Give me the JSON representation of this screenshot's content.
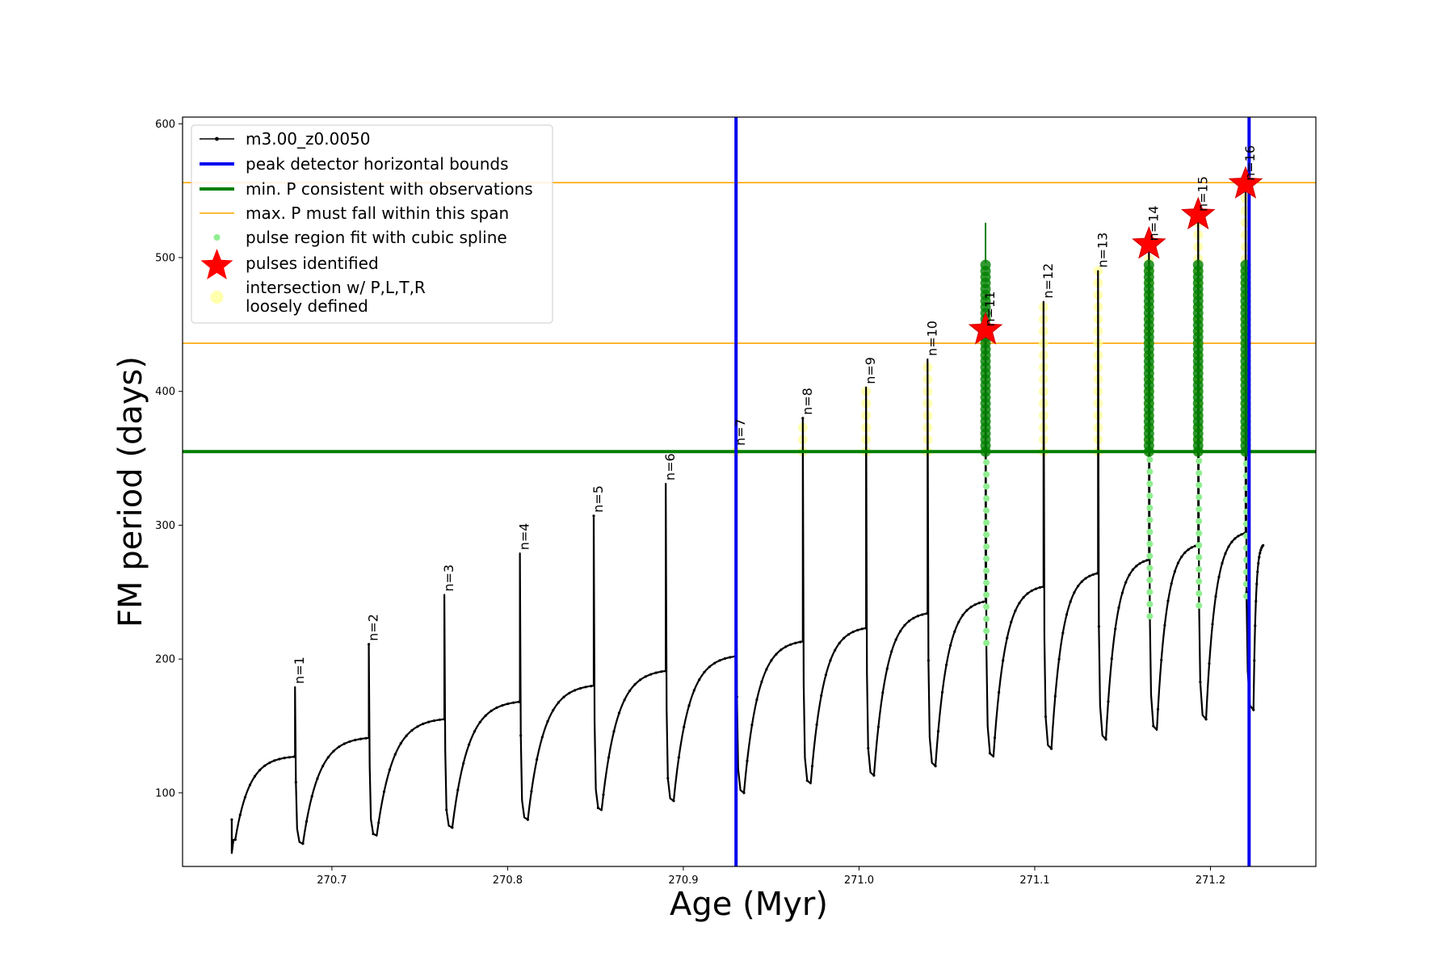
{
  "chart_data": {
    "type": "line",
    "xlabel": "Age (Myr)",
    "ylabel": "FM period (days)",
    "xlim": [
      270.615,
      271.26
    ],
    "ylim": [
      45,
      605
    ],
    "xticks": [
      "270.7",
      "270.8",
      "270.9",
      "271.0",
      "271.1",
      "271.2"
    ],
    "xtick_values": [
      270.7,
      270.8,
      270.9,
      271.0,
      271.1,
      271.2
    ],
    "yticks": [
      "100",
      "200",
      "300",
      "400",
      "500",
      "600"
    ],
    "ytick_values": [
      100,
      200,
      300,
      400,
      500,
      600
    ],
    "grid": false,
    "legend_position": "upper-left",
    "colors": {
      "track": "#000000",
      "bounds": "#0000ee",
      "min_p": "#007f00",
      "max_p": "#ffa500",
      "spline": "#90ee90",
      "pulse": "#ff0000",
      "loose": "#ffff99"
    },
    "series": [
      {
        "name": "m3.00_z0.0050",
        "role": "track"
      },
      {
        "name": "peak detector horizontal bounds",
        "role": "bounds",
        "x": [
          270.93,
          271.222
        ]
      },
      {
        "name": "min. P consistent with observations",
        "role": "min_p",
        "y": 355
      },
      {
        "name": "max. P must fall within this span",
        "role": "max_p",
        "y": [
          436,
          556
        ]
      },
      {
        "name": "pulse region fit with cubic spline",
        "role": "spline"
      },
      {
        "name": "pulses identified",
        "role": "pulse"
      },
      {
        "name": "intersection w/ P,L,T,R\nloosely defined",
        "role": "loose"
      }
    ],
    "track_start": {
      "age": 270.643,
      "p_min": 55,
      "p_max": 80,
      "p_after": 65
    },
    "track_end_age": 271.23,
    "track_end_period": 285,
    "pulses": [
      {
        "n": 1,
        "label": "n=1",
        "age": 270.679,
        "base": 127,
        "peak": 179,
        "dip": 62,
        "pulse": false,
        "spline": false,
        "loose": false
      },
      {
        "n": 2,
        "label": "n=2",
        "age": 270.721,
        "base": 141,
        "peak": 211,
        "dip": 68,
        "pulse": false,
        "spline": false,
        "loose": false
      },
      {
        "n": 3,
        "label": "n=3",
        "age": 270.764,
        "base": 155,
        "peak": 248,
        "dip": 74,
        "pulse": false,
        "spline": false,
        "loose": false
      },
      {
        "n": 4,
        "label": "n=4",
        "age": 270.807,
        "base": 168,
        "peak": 279,
        "dip": 80,
        "pulse": false,
        "spline": false,
        "loose": false
      },
      {
        "n": 5,
        "label": "n=5",
        "age": 270.849,
        "base": 180,
        "peak": 307,
        "dip": 87,
        "pulse": false,
        "spline": false,
        "loose": false
      },
      {
        "n": 6,
        "label": "n=6",
        "age": 270.89,
        "base": 191,
        "peak": 331,
        "dip": 94,
        "pulse": false,
        "spline": false,
        "loose": false
      },
      {
        "n": 7,
        "label": "n=7",
        "age": 270.93,
        "base": 202,
        "peak": 357,
        "dip": 100,
        "pulse": false,
        "spline": false,
        "loose": true
      },
      {
        "n": 8,
        "label": "n=8",
        "age": 270.968,
        "base": 213,
        "peak": 380,
        "dip": 107,
        "pulse": false,
        "spline": false,
        "loose": true
      },
      {
        "n": 9,
        "label": "n=9",
        "age": 271.004,
        "base": 223,
        "peak": 403,
        "dip": 113,
        "pulse": false,
        "spline": false,
        "loose": true
      },
      {
        "n": 10,
        "label": "n=10",
        "age": 271.039,
        "base": 234,
        "peak": 424,
        "dip": 120,
        "pulse": false,
        "spline": false,
        "loose": true
      },
      {
        "n": 11,
        "label": "n=11",
        "age": 271.072,
        "base": 243,
        "peak": 446,
        "dip": 127,
        "pulse": true,
        "spline": true,
        "loose": false
      },
      {
        "n": 12,
        "label": "n=12",
        "age": 271.105,
        "base": 254,
        "peak": 467,
        "dip": 133,
        "pulse": false,
        "spline": false,
        "loose": true
      },
      {
        "n": 13,
        "label": "n=13",
        "age": 271.136,
        "base": 264,
        "peak": 490,
        "dip": 140,
        "pulse": false,
        "spline": false,
        "loose": true
      },
      {
        "n": 14,
        "label": "n=14",
        "age": 271.165,
        "base": 274,
        "peak": 510,
        "dip": 147,
        "pulse": true,
        "spline": true,
        "loose": true
      },
      {
        "n": 15,
        "label": "n=15",
        "age": 271.193,
        "base": 285,
        "peak": 532,
        "dip": 155,
        "pulse": true,
        "spline": true,
        "loose": true
      },
      {
        "n": 16,
        "label": "n=16",
        "age": 271.22,
        "base": 294,
        "peak": 555,
        "dip": 162,
        "pulse": true,
        "spline": true,
        "loose": true
      }
    ]
  }
}
